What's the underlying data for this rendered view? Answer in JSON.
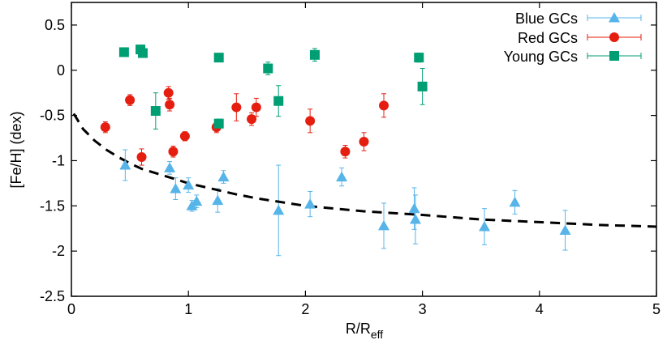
{
  "chart_data": {
    "type": "scatter",
    "xlabel": "R/R",
    "xlabel_sub": "eff",
    "ylabel": "[Fe/H] (dex)",
    "xlim": [
      0,
      5
    ],
    "ylim": [
      -2.5,
      0.75
    ],
    "x_ticks": [
      {
        "value": 0,
        "label": "0"
      },
      {
        "value": 1,
        "label": "1"
      },
      {
        "value": 2,
        "label": "2"
      },
      {
        "value": 3,
        "label": "3"
      },
      {
        "value": 4,
        "label": "4"
      },
      {
        "value": 5,
        "label": "5"
      }
    ],
    "y_ticks": [
      {
        "value": 0.5,
        "label": "0.5"
      },
      {
        "value": 0,
        "label": "0"
      },
      {
        "value": -0.5,
        "label": "-0.5"
      },
      {
        "value": -1,
        "label": "-1"
      },
      {
        "value": -1.5,
        "label": "-1.5"
      },
      {
        "value": -2,
        "label": "-2"
      },
      {
        "value": -2.5,
        "label": "-2.5"
      }
    ],
    "grid": false,
    "legend_position": "top-right",
    "series": [
      {
        "name": "Blue GCs",
        "marker": "triangle",
        "color": "#56b4e9",
        "points": [
          {
            "x": 0.46,
            "y": -1.05,
            "err": 0.17
          },
          {
            "x": 0.84,
            "y": -1.08,
            "err": 0.07
          },
          {
            "x": 0.89,
            "y": -1.31,
            "err": 0.12
          },
          {
            "x": 1.0,
            "y": -1.27,
            "err": 0.08
          },
          {
            "x": 1.03,
            "y": -1.5,
            "err": 0.06
          },
          {
            "x": 1.07,
            "y": -1.45,
            "err": 0.07
          },
          {
            "x": 1.25,
            "y": -1.44,
            "err": 0.13
          },
          {
            "x": 1.3,
            "y": -1.18,
            "err": 0.07
          },
          {
            "x": 1.77,
            "y": -1.55,
            "err": 0.5
          },
          {
            "x": 2.04,
            "y": -1.48,
            "err": 0.14
          },
          {
            "x": 2.31,
            "y": -1.18,
            "err": 0.1
          },
          {
            "x": 2.67,
            "y": -1.72,
            "err": 0.25
          },
          {
            "x": 2.93,
            "y": -1.53,
            "err": 0.23
          },
          {
            "x": 2.94,
            "y": -1.65,
            "err": 0.27
          },
          {
            "x": 3.53,
            "y": -1.73,
            "err": 0.2
          },
          {
            "x": 3.79,
            "y": -1.46,
            "err": 0.13
          },
          {
            "x": 4.22,
            "y": -1.77,
            "err": 0.22
          }
        ]
      },
      {
        "name": "Red GCs",
        "marker": "circle",
        "color": "#e51e10",
        "points": [
          {
            "x": 0.29,
            "y": -0.63,
            "err": 0.06
          },
          {
            "x": 0.5,
            "y": -0.33,
            "err": 0.06
          },
          {
            "x": 0.6,
            "y": -0.96,
            "err": 0.09
          },
          {
            "x": 0.83,
            "y": -0.25,
            "err": 0.07
          },
          {
            "x": 0.84,
            "y": -0.38,
            "err": 0.07
          },
          {
            "x": 0.87,
            "y": -0.9,
            "err": 0.06
          },
          {
            "x": 0.97,
            "y": -0.73,
            "err": 0.05
          },
          {
            "x": 1.24,
            "y": -0.63,
            "err": 0.06
          },
          {
            "x": 1.41,
            "y": -0.41,
            "err": 0.15
          },
          {
            "x": 1.54,
            "y": -0.54,
            "err": 0.07
          },
          {
            "x": 1.58,
            "y": -0.41,
            "err": 0.1
          },
          {
            "x": 2.04,
            "y": -0.56,
            "err": 0.13
          },
          {
            "x": 2.34,
            "y": -0.9,
            "err": 0.07
          },
          {
            "x": 2.5,
            "y": -0.79,
            "err": 0.1
          },
          {
            "x": 2.67,
            "y": -0.39,
            "err": 0.13
          }
        ]
      },
      {
        "name": "Young GCs",
        "marker": "square",
        "color": "#009e73",
        "points": [
          {
            "x": 0.45,
            "y": 0.2,
            "err": 0
          },
          {
            "x": 0.59,
            "y": 0.23,
            "err": 0
          },
          {
            "x": 0.61,
            "y": 0.19,
            "err": 0
          },
          {
            "x": 0.72,
            "y": -0.45,
            "err": 0.2
          },
          {
            "x": 1.26,
            "y": -0.59,
            "err": 0.05
          },
          {
            "x": 1.26,
            "y": 0.14,
            "err": 0
          },
          {
            "x": 1.68,
            "y": 0.02,
            "err": 0.07
          },
          {
            "x": 1.77,
            "y": -0.34,
            "err": 0.17
          },
          {
            "x": 2.08,
            "y": 0.17,
            "err": 0.07
          },
          {
            "x": 2.97,
            "y": 0.14,
            "err": 0.05
          },
          {
            "x": 3.0,
            "y": -0.18,
            "err": 0.2
          }
        ]
      }
    ],
    "fit_curve": {
      "style": "dashed",
      "color": "#000000",
      "points": [
        [
          0.02,
          -0.48
        ],
        [
          0.1,
          -0.65
        ],
        [
          0.2,
          -0.78
        ],
        [
          0.3,
          -0.88
        ],
        [
          0.4,
          -0.96
        ],
        [
          0.5,
          -1.03
        ],
        [
          0.6,
          -1.09
        ],
        [
          0.8,
          -1.17
        ],
        [
          1.0,
          -1.25
        ],
        [
          1.2,
          -1.31
        ],
        [
          1.4,
          -1.37
        ],
        [
          1.6,
          -1.42
        ],
        [
          1.8,
          -1.46
        ],
        [
          2.0,
          -1.5
        ],
        [
          2.5,
          -1.56
        ],
        [
          3.0,
          -1.6
        ],
        [
          3.5,
          -1.65
        ],
        [
          4.0,
          -1.68
        ],
        [
          4.5,
          -1.71
        ],
        [
          5.0,
          -1.73
        ]
      ]
    }
  }
}
